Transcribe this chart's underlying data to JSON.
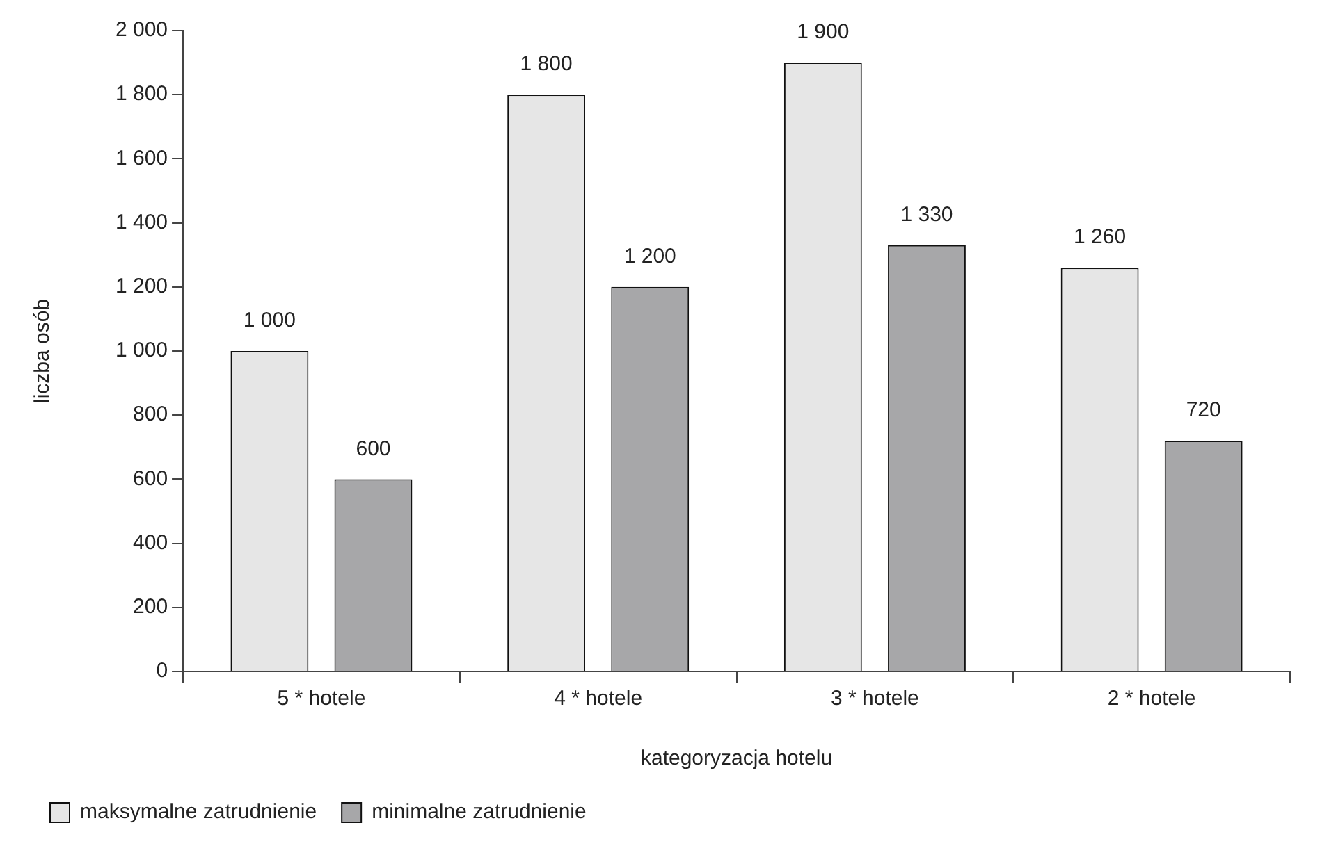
{
  "chart_data": {
    "type": "bar",
    "xlabel": "kategoryzacja hotelu",
    "ylabel": "liczba osób",
    "categories": [
      "5 * hotele",
      "4 * hotele",
      "3 * hotele",
      "2 * hotele"
    ],
    "series": [
      {
        "name": "maksymalne zatrudnienie",
        "color": "#e6e6e6",
        "values": [
          1000,
          1800,
          1900,
          1260
        ],
        "value_labels": [
          "1 000",
          "1 800",
          "1 900",
          "1 260"
        ]
      },
      {
        "name": "minimalne zatrudnienie",
        "color": "#a7a7a9",
        "values": [
          600,
          1200,
          1330,
          720
        ],
        "value_labels": [
          "600",
          "1 200",
          "1 330",
          "720"
        ]
      }
    ],
    "ylim": [
      0,
      2000
    ],
    "yticks": [
      {
        "value": 0,
        "label": "0"
      },
      {
        "value": 200,
        "label": "200"
      },
      {
        "value": 400,
        "label": "400"
      },
      {
        "value": 600,
        "label": "600"
      },
      {
        "value": 800,
        "label": "800"
      },
      {
        "value": 1000,
        "label": "1 000"
      },
      {
        "value": 1200,
        "label": "1 200"
      },
      {
        "value": 1400,
        "label": "1 400"
      },
      {
        "value": 1600,
        "label": "1 600"
      },
      {
        "value": 1800,
        "label": "1 800"
      },
      {
        "value": 2000,
        "label": "2 000"
      }
    ],
    "grid": false,
    "legend": "bottom left"
  }
}
